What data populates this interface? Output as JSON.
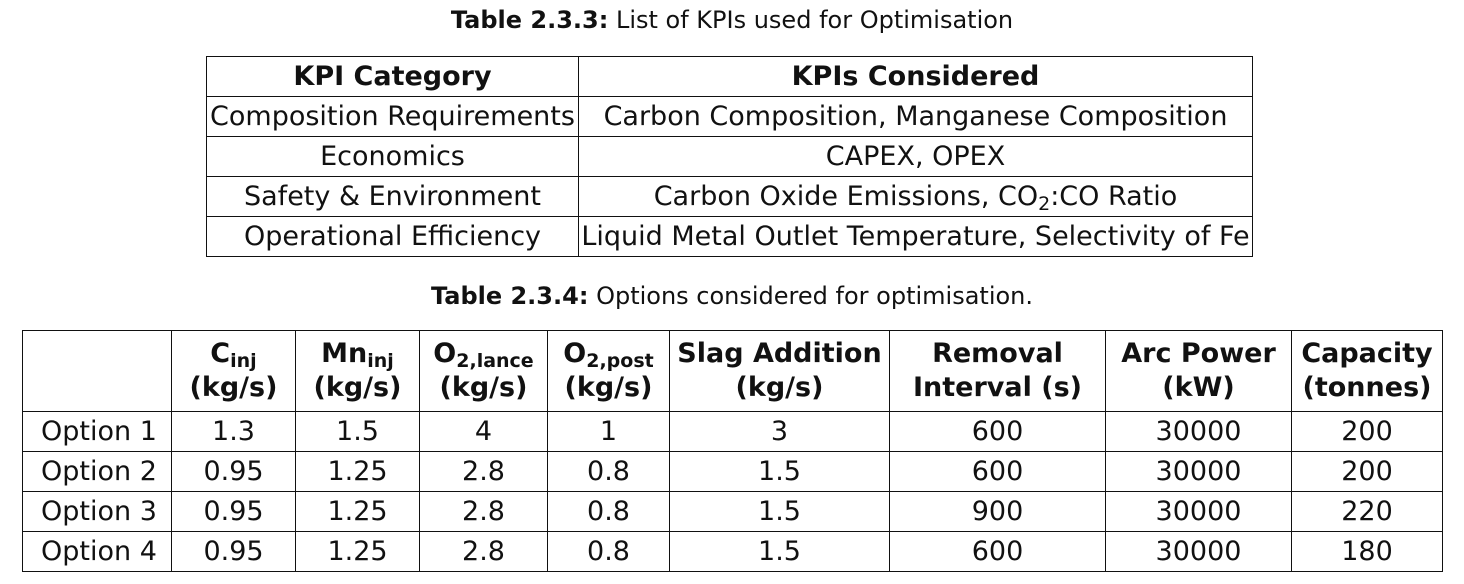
{
  "table1": {
    "caption_label": "Table 2.3.3:",
    "caption_text": "List of KPIs used for Optimisation",
    "headers": [
      "KPI Category",
      "KPIs Considered"
    ],
    "rows": [
      {
        "category": "Composition Requirements",
        "kpis": "Carbon Composition, Manganese Composition"
      },
      {
        "category": "Economics",
        "kpis": "CAPEX, OPEX"
      },
      {
        "category": "Safety & Environment",
        "kpis_pre": "Carbon Oxide Emissions, CO",
        "kpis_sub": "2",
        "kpis_post": ":CO Ratio"
      },
      {
        "category": "Operational Efficiency",
        "kpis": "Liquid Metal Outlet Temperature, Selectivity of Fe"
      }
    ]
  },
  "table2": {
    "caption_label": "Table 2.3.4:",
    "caption_text": "Options considered for optimisation.",
    "headers": [
      {
        "base": "C",
        "sub": "inj",
        "line2": "(kg/s)"
      },
      {
        "base": "Mn",
        "sub": "inj",
        "line2": "(kg/s)"
      },
      {
        "base": "O",
        "sub": "2,lance",
        "line2": "(kg/s)"
      },
      {
        "base": "O",
        "sub": "2,post",
        "line2": "(kg/s)"
      },
      {
        "line1": "Slag Addition",
        "line2": "(kg/s)"
      },
      {
        "line1": "Removal",
        "line2": "Interval (s)"
      },
      {
        "line1": "Arc Power",
        "line2": "(kW)"
      },
      {
        "line1": "Capacity",
        "line2": "(tonnes)"
      }
    ],
    "rows": [
      {
        "label": "Option 1",
        "values": [
          "1.3",
          "1.5",
          "4",
          "1",
          "3",
          "600",
          "30000",
          "200"
        ]
      },
      {
        "label": "Option 2",
        "values": [
          "0.95",
          "1.25",
          "2.8",
          "0.8",
          "1.5",
          "600",
          "30000",
          "200"
        ]
      },
      {
        "label": "Option 3",
        "values": [
          "0.95",
          "1.25",
          "2.8",
          "0.8",
          "1.5",
          "900",
          "30000",
          "220"
        ]
      },
      {
        "label": "Option 4",
        "values": [
          "0.95",
          "1.25",
          "2.8",
          "0.8",
          "1.5",
          "600",
          "30000",
          "180"
        ]
      }
    ]
  }
}
